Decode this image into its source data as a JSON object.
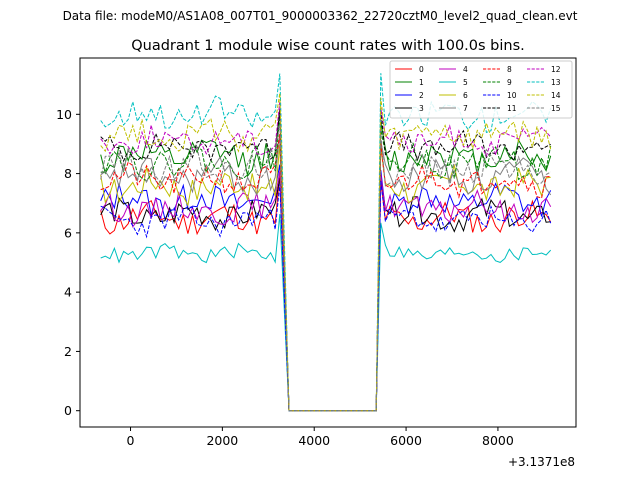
{
  "chart_data": {
    "type": "line",
    "suptitle": "Data file: modeM0/AS1A08_007T01_9000003362_22720cztM0_level2_quad_clean.evt",
    "title": "Quadrant 1 module wise count rates with 100.0s bins.",
    "xlabel": "",
    "ylabel": "",
    "x_offset_label": "+3.1371e8",
    "xlim": [
      -1100,
      9700
    ],
    "ylim": [
      -0.55,
      11.9
    ],
    "xticks": [
      0,
      2000,
      4000,
      6000,
      8000
    ],
    "yticks": [
      0,
      2,
      4,
      6,
      8,
      10
    ],
    "bin_seconds": 100.0,
    "x_start": -650,
    "x_step": 100,
    "gap": {
      "drop_start": 3250,
      "zero_from": 3450,
      "zero_to": 5350,
      "rise_end": 5450
    },
    "legend": {
      "position": "top-right",
      "ncol": 4
    },
    "series": [
      {
        "name": "0",
        "color": "#ff0000",
        "dash": "solid",
        "mean": 6.5,
        "amp": 0.45,
        "seed": 11
      },
      {
        "name": "1",
        "color": "#008000",
        "dash": "solid",
        "mean": 8.6,
        "amp": 0.5,
        "seed": 12
      },
      {
        "name": "2",
        "color": "#0000ff",
        "dash": "solid",
        "mean": 7.1,
        "amp": 0.5,
        "seed": 13
      },
      {
        "name": "3",
        "color": "#000000",
        "dash": "solid",
        "mean": 6.6,
        "amp": 0.45,
        "seed": 14
      },
      {
        "name": "4",
        "color": "#bf00bf",
        "dash": "solid",
        "mean": 6.8,
        "amp": 0.45,
        "seed": 15
      },
      {
        "name": "5",
        "color": "#00bfbf",
        "dash": "solid",
        "mean": 5.3,
        "amp": 0.25,
        "seed": 16
      },
      {
        "name": "6",
        "color": "#bfbf00",
        "dash": "solid",
        "mean": 7.6,
        "amp": 0.5,
        "seed": 17
      },
      {
        "name": "7",
        "color": "#808080",
        "dash": "solid",
        "mean": 7.9,
        "amp": 0.5,
        "seed": 18
      },
      {
        "name": "8",
        "color": "#ff0000",
        "dash": "dashed",
        "mean": 7.8,
        "amp": 0.45,
        "seed": 21
      },
      {
        "name": "9",
        "color": "#008000",
        "dash": "dashed",
        "mean": 8.4,
        "amp": 0.5,
        "seed": 22
      },
      {
        "name": "10",
        "color": "#0000ff",
        "dash": "dashed",
        "mean": 6.4,
        "amp": 0.4,
        "seed": 23
      },
      {
        "name": "11",
        "color": "#000000",
        "dash": "dashed",
        "mean": 8.9,
        "amp": 0.4,
        "seed": 24
      },
      {
        "name": "12",
        "color": "#bf00bf",
        "dash": "dashed",
        "mean": 9.1,
        "amp": 0.4,
        "seed": 25
      },
      {
        "name": "13",
        "color": "#00bfbf",
        "dash": "dashed",
        "mean": 10.0,
        "amp": 0.45,
        "seed": 26
      },
      {
        "name": "14",
        "color": "#bfbf00",
        "dash": "dashed",
        "mean": 9.3,
        "amp": 0.45,
        "seed": 27
      },
      {
        "name": "15",
        "color": "#808080",
        "dash": "dashed",
        "mean": 8.2,
        "amp": 0.5,
        "seed": 28
      }
    ]
  }
}
